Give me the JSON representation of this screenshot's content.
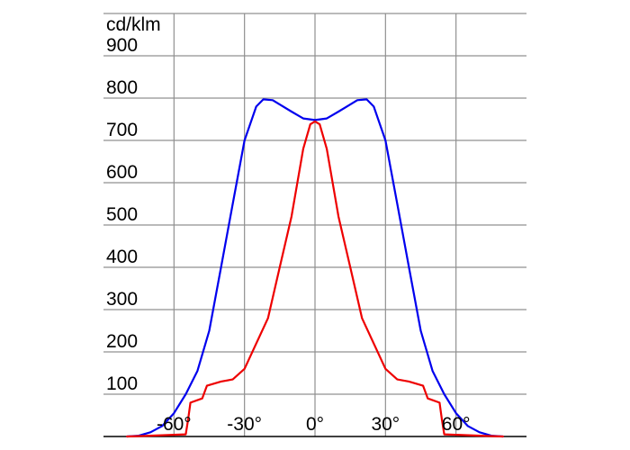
{
  "chart_data": {
    "type": "line",
    "unit_label": "cd/klm",
    "x_unit": "°",
    "xlim": [
      -90,
      90
    ],
    "ylim": [
      0,
      1000
    ],
    "grid": true,
    "y_ticks": [
      100,
      200,
      300,
      400,
      500,
      600,
      700,
      800,
      900
    ],
    "x_ticks": [
      -60,
      -30,
      0,
      30,
      60
    ],
    "x_tick_labels": [
      "-60°",
      "-30°",
      "0°",
      "30°",
      "60°"
    ],
    "series": [
      {
        "color": "#0000ee",
        "points": [
          [
            -80,
            0
          ],
          [
            -75,
            2
          ],
          [
            -70,
            10
          ],
          [
            -65,
            25
          ],
          [
            -60,
            55
          ],
          [
            -55,
            100
          ],
          [
            -50,
            155
          ],
          [
            -45,
            250
          ],
          [
            -40,
            400
          ],
          [
            -35,
            550
          ],
          [
            -30,
            700
          ],
          [
            -25,
            780
          ],
          [
            -22,
            797
          ],
          [
            -18,
            795
          ],
          [
            -15,
            785
          ],
          [
            -10,
            768
          ],
          [
            -5,
            752
          ],
          [
            0,
            748
          ],
          [
            5,
            752
          ],
          [
            10,
            768
          ],
          [
            15,
            785
          ],
          [
            18,
            795
          ],
          [
            22,
            797
          ],
          [
            25,
            780
          ],
          [
            30,
            700
          ],
          [
            35,
            550
          ],
          [
            40,
            400
          ],
          [
            45,
            250
          ],
          [
            50,
            155
          ],
          [
            55,
            100
          ],
          [
            60,
            55
          ],
          [
            65,
            25
          ],
          [
            70,
            10
          ],
          [
            75,
            2
          ],
          [
            80,
            0
          ]
        ]
      },
      {
        "color": "#ee0000",
        "points": [
          [
            -80,
            0
          ],
          [
            -70,
            2
          ],
          [
            -55,
            5
          ],
          [
            -54,
            40
          ],
          [
            -53,
            80
          ],
          [
            -48,
            90
          ],
          [
            -46,
            120
          ],
          [
            -40,
            130
          ],
          [
            -35,
            135
          ],
          [
            -30,
            160
          ],
          [
            -20,
            280
          ],
          [
            -15,
            400
          ],
          [
            -10,
            520
          ],
          [
            -5,
            680
          ],
          [
            -2,
            738
          ],
          [
            0,
            745
          ],
          [
            2,
            738
          ],
          [
            5,
            680
          ],
          [
            10,
            520
          ],
          [
            15,
            400
          ],
          [
            20,
            280
          ],
          [
            30,
            160
          ],
          [
            35,
            135
          ],
          [
            40,
            130
          ],
          [
            46,
            120
          ],
          [
            48,
            90
          ],
          [
            53,
            80
          ],
          [
            54,
            40
          ],
          [
            55,
            5
          ],
          [
            70,
            2
          ],
          [
            80,
            0
          ]
        ]
      }
    ]
  }
}
